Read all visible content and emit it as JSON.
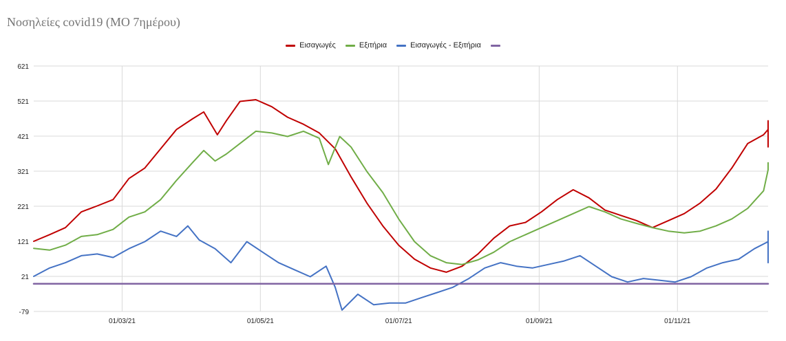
{
  "chart_data": {
    "type": "line",
    "title": "Νοσηλείες covid19 (ΜΟ 7ημέρου)",
    "x_start": "2021-01-21",
    "x_end": "2021-12-11",
    "x_ticks": [
      "01/03/21",
      "01/05/21",
      "01/07/21",
      "01/09/21",
      "01/11/21"
    ],
    "y_ticks": [
      621,
      521,
      421,
      321,
      221,
      121,
      21,
      -79
    ],
    "ylim": [
      -79,
      621
    ],
    "legend_position": "top-center",
    "grid": true,
    "series": [
      {
        "name": "Εισαγωγές",
        "color": "#c00000",
        "points": [
          [
            "2021-01-21",
            121
          ],
          [
            "2021-01-28",
            140
          ],
          [
            "2021-02-04",
            160
          ],
          [
            "2021-02-11",
            205
          ],
          [
            "2021-02-18",
            222
          ],
          [
            "2021-02-25",
            240
          ],
          [
            "2021-03-04",
            300
          ],
          [
            "2021-03-11",
            330
          ],
          [
            "2021-03-18",
            385
          ],
          [
            "2021-03-25",
            440
          ],
          [
            "2021-04-01",
            470
          ],
          [
            "2021-04-06",
            490
          ],
          [
            "2021-04-12",
            425
          ],
          [
            "2021-04-16",
            465
          ],
          [
            "2021-04-22",
            520
          ],
          [
            "2021-04-29",
            525
          ],
          [
            "2021-05-06",
            505
          ],
          [
            "2021-05-13",
            475
          ],
          [
            "2021-05-20",
            455
          ],
          [
            "2021-05-27",
            430
          ],
          [
            "2021-06-03",
            385
          ],
          [
            "2021-06-10",
            305
          ],
          [
            "2021-06-17",
            230
          ],
          [
            "2021-06-24",
            165
          ],
          [
            "2021-07-01",
            110
          ],
          [
            "2021-07-08",
            70
          ],
          [
            "2021-07-15",
            45
          ],
          [
            "2021-07-22",
            33
          ],
          [
            "2021-07-29",
            50
          ],
          [
            "2021-08-05",
            85
          ],
          [
            "2021-08-12",
            130
          ],
          [
            "2021-08-19",
            165
          ],
          [
            "2021-08-26",
            175
          ],
          [
            "2021-09-02",
            205
          ],
          [
            "2021-09-09",
            240
          ],
          [
            "2021-09-16",
            268
          ],
          [
            "2021-09-23",
            245
          ],
          [
            "2021-09-30",
            210
          ],
          [
            "2021-10-07",
            195
          ],
          [
            "2021-10-14",
            180
          ],
          [
            "2021-10-21",
            160
          ],
          [
            "2021-10-28",
            180
          ],
          [
            "2021-11-04",
            200
          ],
          [
            "2021-11-11",
            230
          ],
          [
            "2021-11-18",
            270
          ],
          [
            "2021-11-25",
            330
          ],
          [
            "2021-12-02",
            400
          ],
          [
            "2021-12-09",
            425
          ],
          [
            "2021-12-16",
            440
          ],
          [
            "2021-12-23",
            465
          ],
          [
            "2021-12-30",
            435
          ],
          [
            "2022-01-06",
            390
          ]
        ]
      },
      {
        "name": "Εξιτήρια",
        "color": "#70ad47",
        "points": [
          [
            "2021-01-21",
            101
          ],
          [
            "2021-01-28",
            96
          ],
          [
            "2021-02-04",
            110
          ],
          [
            "2021-02-11",
            135
          ],
          [
            "2021-02-18",
            140
          ],
          [
            "2021-02-25",
            155
          ],
          [
            "2021-03-04",
            190
          ],
          [
            "2021-03-11",
            205
          ],
          [
            "2021-03-18",
            240
          ],
          [
            "2021-03-25",
            295
          ],
          [
            "2021-04-01",
            345
          ],
          [
            "2021-04-06",
            380
          ],
          [
            "2021-04-11",
            350
          ],
          [
            "2021-04-16",
            370
          ],
          [
            "2021-04-22",
            400
          ],
          [
            "2021-04-29",
            435
          ],
          [
            "2021-05-06",
            430
          ],
          [
            "2021-05-13",
            420
          ],
          [
            "2021-05-20",
            435
          ],
          [
            "2021-05-27",
            415
          ],
          [
            "2021-05-31",
            340
          ],
          [
            "2021-06-05",
            420
          ],
          [
            "2021-06-10",
            390
          ],
          [
            "2021-06-17",
            320
          ],
          [
            "2021-06-24",
            260
          ],
          [
            "2021-07-01",
            185
          ],
          [
            "2021-07-08",
            120
          ],
          [
            "2021-07-15",
            80
          ],
          [
            "2021-07-22",
            60
          ],
          [
            "2021-07-29",
            55
          ],
          [
            "2021-08-05",
            68
          ],
          [
            "2021-08-12",
            90
          ],
          [
            "2021-08-19",
            120
          ],
          [
            "2021-08-26",
            140
          ],
          [
            "2021-09-02",
            160
          ],
          [
            "2021-09-09",
            180
          ],
          [
            "2021-09-16",
            200
          ],
          [
            "2021-09-23",
            220
          ],
          [
            "2021-09-30",
            205
          ],
          [
            "2021-10-07",
            185
          ],
          [
            "2021-10-14",
            172
          ],
          [
            "2021-10-21",
            160
          ],
          [
            "2021-10-28",
            150
          ],
          [
            "2021-11-04",
            145
          ],
          [
            "2021-11-11",
            150
          ],
          [
            "2021-11-18",
            165
          ],
          [
            "2021-11-25",
            185
          ],
          [
            "2021-12-02",
            215
          ],
          [
            "2021-12-09",
            265
          ],
          [
            "2021-12-16",
            325
          ],
          [
            "2021-12-23",
            330
          ],
          [
            "2021-12-30",
            345
          ],
          [
            "2022-01-06",
            330
          ]
        ]
      },
      {
        "name": "Εισαγωγές - Εξιτήρια",
        "color": "#4472c4",
        "points": [
          [
            "2021-01-21",
            21
          ],
          [
            "2021-01-28",
            45
          ],
          [
            "2021-02-04",
            60
          ],
          [
            "2021-02-11",
            80
          ],
          [
            "2021-02-18",
            85
          ],
          [
            "2021-02-25",
            75
          ],
          [
            "2021-03-04",
            100
          ],
          [
            "2021-03-11",
            120
          ],
          [
            "2021-03-18",
            150
          ],
          [
            "2021-03-25",
            135
          ],
          [
            "2021-03-30",
            165
          ],
          [
            "2021-04-04",
            125
          ],
          [
            "2021-04-11",
            100
          ],
          [
            "2021-04-18",
            60
          ],
          [
            "2021-04-25",
            120
          ],
          [
            "2021-05-02",
            90
          ],
          [
            "2021-05-09",
            60
          ],
          [
            "2021-05-16",
            40
          ],
          [
            "2021-05-23",
            20
          ],
          [
            "2021-05-30",
            50
          ],
          [
            "2021-06-03",
            -10
          ],
          [
            "2021-06-06",
            -75
          ],
          [
            "2021-06-13",
            -30
          ],
          [
            "2021-06-20",
            -60
          ],
          [
            "2021-06-27",
            -55
          ],
          [
            "2021-07-04",
            -55
          ],
          [
            "2021-07-11",
            -40
          ],
          [
            "2021-07-18",
            -25
          ],
          [
            "2021-07-25",
            -10
          ],
          [
            "2021-08-01",
            15
          ],
          [
            "2021-08-08",
            45
          ],
          [
            "2021-08-15",
            60
          ],
          [
            "2021-08-22",
            50
          ],
          [
            "2021-08-29",
            45
          ],
          [
            "2021-09-05",
            55
          ],
          [
            "2021-09-12",
            65
          ],
          [
            "2021-09-19",
            80
          ],
          [
            "2021-09-26",
            50
          ],
          [
            "2021-10-03",
            20
          ],
          [
            "2021-10-10",
            5
          ],
          [
            "2021-10-17",
            15
          ],
          [
            "2021-10-24",
            10
          ],
          [
            "2021-10-31",
            5
          ],
          [
            "2021-11-07",
            20
          ],
          [
            "2021-11-14",
            45
          ],
          [
            "2021-11-21",
            60
          ],
          [
            "2021-11-28",
            70
          ],
          [
            "2021-12-05",
            100
          ],
          [
            "2021-12-12",
            120
          ],
          [
            "2021-12-19",
            150
          ],
          [
            "2021-12-26",
            130
          ],
          [
            "2022-01-02",
            100
          ],
          [
            "2022-01-09",
            60
          ]
        ]
      },
      {
        "name": "",
        "color": "#8064a2",
        "points": [
          [
            "2021-01-21",
            0
          ],
          [
            "2022-01-09",
            0
          ]
        ]
      }
    ]
  }
}
